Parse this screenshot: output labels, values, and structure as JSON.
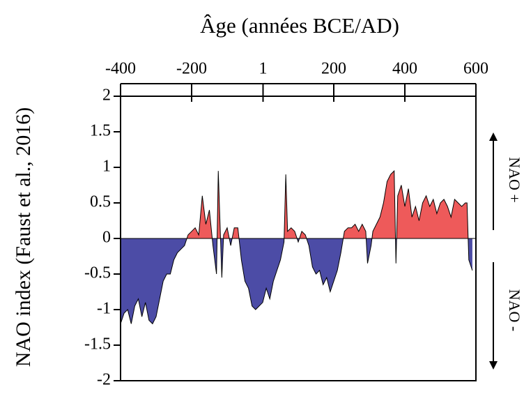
{
  "chart_data": {
    "type": "area",
    "title": "Âge (années BCE/AD)",
    "y_label": "NAO index (Faust et al., 2016)",
    "annotations": [
      "NAO +",
      "NAO -"
    ],
    "positive_color": "#ee5a5a",
    "negative_color": "#4c4ca6",
    "xlim": [
      -400,
      600
    ],
    "xticks": [
      -400,
      -200,
      1,
      200,
      400,
      600
    ],
    "ylim": [
      -2,
      2
    ],
    "yticks": [
      2,
      1.5,
      1,
      0.5,
      0,
      -0.5,
      -1,
      -1.5,
      -2
    ],
    "x": [
      -400,
      -390,
      -380,
      -370,
      -360,
      -350,
      -340,
      -330,
      -320,
      -310,
      -300,
      -290,
      -280,
      -270,
      -260,
      -250,
      -240,
      -230,
      -220,
      -210,
      -200,
      -190,
      -180,
      -170,
      -160,
      -150,
      -140,
      -130,
      -125,
      -115,
      -110,
      -100,
      -90,
      -80,
      -70,
      -60,
      -50,
      -40,
      -30,
      -20,
      -10,
      0,
      10,
      20,
      30,
      40,
      50,
      60,
      65,
      70,
      80,
      90,
      100,
      110,
      120,
      130,
      140,
      150,
      160,
      170,
      180,
      190,
      200,
      210,
      220,
      230,
      240,
      250,
      260,
      270,
      280,
      290,
      295,
      305,
      310,
      320,
      330,
      340,
      350,
      360,
      370,
      375,
      380,
      390,
      400,
      410,
      420,
      430,
      440,
      450,
      460,
      470,
      480,
      490,
      500,
      510,
      520,
      530,
      540,
      550,
      560,
      570,
      575,
      580,
      590
    ],
    "values": [
      -1.2,
      -1.05,
      -1.0,
      -1.2,
      -0.95,
      -0.85,
      -1.1,
      -0.9,
      -1.15,
      -1.2,
      -1.1,
      -0.85,
      -0.6,
      -0.5,
      -0.5,
      -0.3,
      -0.2,
      -0.15,
      -0.1,
      0.05,
      0.1,
      0.15,
      0.05,
      0.6,
      0.2,
      0.4,
      -0.1,
      -0.5,
      0.95,
      -0.55,
      0.05,
      0.15,
      -0.1,
      0.15,
      0.15,
      -0.3,
      -0.6,
      -0.7,
      -0.95,
      -1.0,
      -0.95,
      -0.9,
      -0.7,
      -0.85,
      -0.6,
      -0.45,
      -0.3,
      -0.05,
      0.9,
      0.1,
      0.15,
      0.1,
      -0.05,
      0.1,
      0.05,
      -0.1,
      -0.4,
      -0.5,
      -0.45,
      -0.65,
      -0.55,
      -0.75,
      -0.6,
      -0.45,
      -0.2,
      0.1,
      0.15,
      0.15,
      0.2,
      0.1,
      0.2,
      0.1,
      -0.35,
      -0.1,
      0.1,
      0.2,
      0.3,
      0.5,
      0.8,
      0.9,
      0.95,
      -0.35,
      0.6,
      0.75,
      0.45,
      0.7,
      0.3,
      0.45,
      0.25,
      0.5,
      0.6,
      0.45,
      0.55,
      0.35,
      0.5,
      0.55,
      0.45,
      0.3,
      0.55,
      0.5,
      0.45,
      0.5,
      0.5,
      -0.3,
      -0.45
    ]
  }
}
